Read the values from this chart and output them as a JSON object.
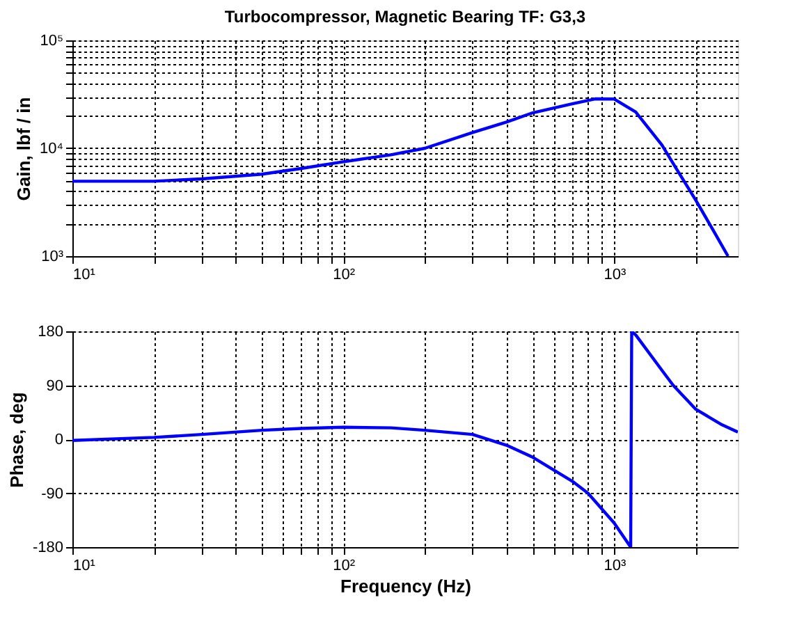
{
  "chart_data": [
    {
      "type": "line",
      "title": "Turbocompressor, Magnetic Bearing TF: G3,3",
      "ylabel": "Gain, lbf / in",
      "log": "xy",
      "grid": true,
      "marker": "none",
      "line_style": "solid",
      "x": [
        10,
        20,
        30,
        50,
        70,
        100,
        150,
        200,
        300,
        400,
        500,
        700,
        850,
        1000,
        1200,
        1500,
        1700,
        2000,
        2300,
        2630
      ],
      "series": [
        {
          "color": "#0000ff",
          "values": [
            4950,
            4950,
            5200,
            5750,
            6500,
            7500,
            8700,
            10000,
            14000,
            17500,
            21300,
            25800,
            28700,
            28600,
            21700,
            10700,
            6400,
            3300,
            1800,
            1000
          ]
        }
      ],
      "xlim": [
        10,
        2860
      ],
      "ylim": [
        1000,
        100000
      ],
      "xticks": [
        {
          "value": 10,
          "label": "10¹"
        },
        {
          "value": 20,
          "label": null
        },
        {
          "value": 30,
          "label": null
        },
        {
          "value": 40,
          "label": null
        },
        {
          "value": 50,
          "label": null
        },
        {
          "value": 60,
          "label": null
        },
        {
          "value": 70,
          "label": null
        },
        {
          "value": 80,
          "label": null
        },
        {
          "value": 90,
          "label": null
        },
        {
          "value": 100,
          "label": "10²"
        },
        {
          "value": 200,
          "label": null
        },
        {
          "value": 300,
          "label": null
        },
        {
          "value": 400,
          "label": null
        },
        {
          "value": 500,
          "label": null
        },
        {
          "value": 600,
          "label": null
        },
        {
          "value": 700,
          "label": null
        },
        {
          "value": 800,
          "label": null
        },
        {
          "value": 900,
          "label": null
        },
        {
          "value": 1000,
          "label": "10³"
        },
        {
          "value": 2000,
          "label": null
        }
      ],
      "yticks": [
        {
          "value": 1000,
          "label": "10³"
        },
        {
          "value": 2000,
          "label": null
        },
        {
          "value": 3000,
          "label": null
        },
        {
          "value": 4000,
          "label": null
        },
        {
          "value": 5000,
          "label": null
        },
        {
          "value": 6000,
          "label": null
        },
        {
          "value": 7000,
          "label": null
        },
        {
          "value": 8000,
          "label": null
        },
        {
          "value": 9000,
          "label": null
        },
        {
          "value": 10000,
          "label": "10⁴"
        },
        {
          "value": 20000,
          "label": null
        },
        {
          "value": 30000,
          "label": null
        },
        {
          "value": 40000,
          "label": null
        },
        {
          "value": 50000,
          "label": null
        },
        {
          "value": 60000,
          "label": null
        },
        {
          "value": 70000,
          "label": null
        },
        {
          "value": 80000,
          "label": null
        },
        {
          "value": 90000,
          "label": null
        },
        {
          "value": 100000,
          "label": "10⁵"
        }
      ]
    },
    {
      "type": "line",
      "xlabel": "Frequency (Hz)",
      "ylabel": "Phase, deg",
      "log": "x",
      "grid": true,
      "marker": "none",
      "line_style": "solid",
      "x": [
        10,
        20,
        30,
        50,
        70,
        100,
        150,
        200,
        300,
        400,
        500,
        700,
        800,
        1000,
        1150,
        1160,
        1200,
        1500,
        1650,
        2000,
        2500,
        2860
      ],
      "series": [
        {
          "color": "#0000ff",
          "values": [
            -2,
            3,
            8,
            15,
            18,
            20,
            19,
            15,
            8,
            -10,
            -30,
            -70,
            -90,
            -140,
            -180,
            180,
            174,
            115,
            90,
            50,
            24,
            12
          ]
        }
      ],
      "xlim": [
        10,
        2860
      ],
      "ylim": [
        -180,
        180
      ],
      "xticks": [
        {
          "value": 10,
          "label": "10¹"
        },
        {
          "value": 20,
          "label": null
        },
        {
          "value": 30,
          "label": null
        },
        {
          "value": 40,
          "label": null
        },
        {
          "value": 50,
          "label": null
        },
        {
          "value": 60,
          "label": null
        },
        {
          "value": 70,
          "label": null
        },
        {
          "value": 80,
          "label": null
        },
        {
          "value": 90,
          "label": null
        },
        {
          "value": 100,
          "label": "10²"
        },
        {
          "value": 200,
          "label": null
        },
        {
          "value": 300,
          "label": null
        },
        {
          "value": 400,
          "label": null
        },
        {
          "value": 500,
          "label": null
        },
        {
          "value": 600,
          "label": null
        },
        {
          "value": 700,
          "label": null
        },
        {
          "value": 800,
          "label": null
        },
        {
          "value": 900,
          "label": null
        },
        {
          "value": 1000,
          "label": "10³"
        },
        {
          "value": 2000,
          "label": null
        }
      ],
      "yticks": [
        -180,
        -90,
        0,
        90,
        180
      ]
    }
  ]
}
